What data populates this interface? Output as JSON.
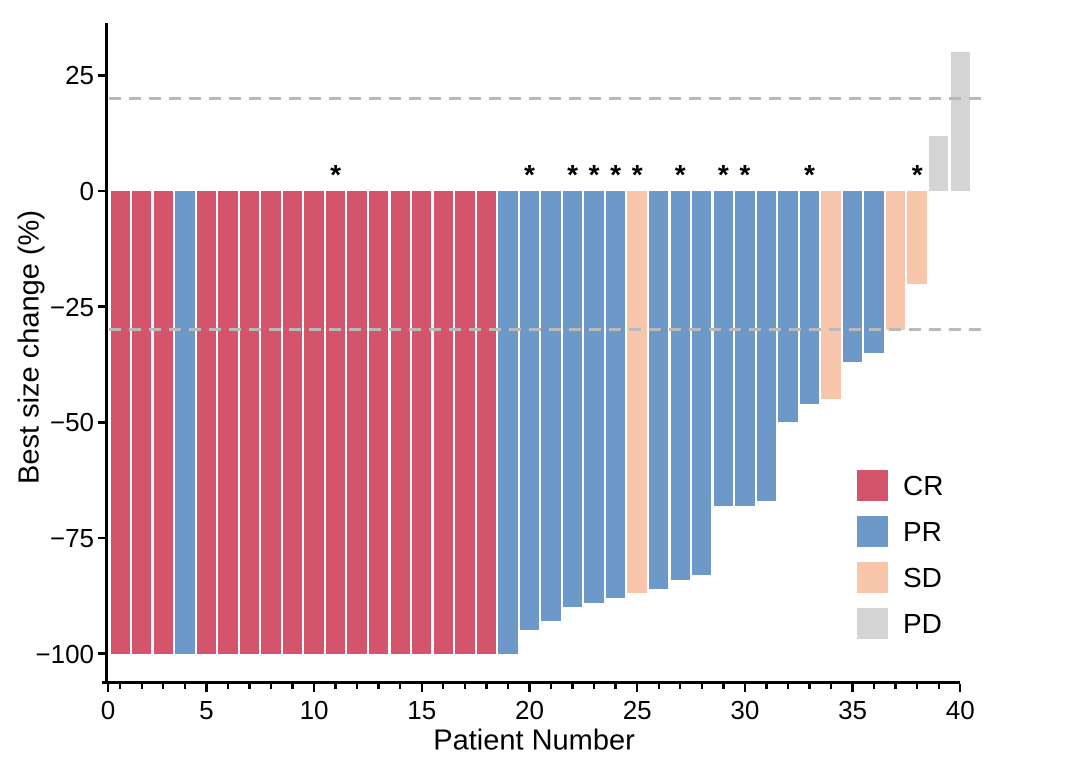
{
  "figure": {
    "kind": "oncology-waterfall-plot",
    "background": "#ffffff",
    "axis_color": "#000000",
    "text_color": "#000000"
  },
  "chart_data": {
    "type": "bar",
    "title": "",
    "xlabel": "Patient Number",
    "ylabel": "Best size change (%)",
    "x_ticks": [
      0,
      5,
      10,
      15,
      20,
      25,
      30,
      35,
      40
    ],
    "y_ticks": [
      25,
      0,
      -25,
      -50,
      -75,
      -100
    ],
    "y_tick_labels": [
      "25",
      "0",
      "−25",
      "−50",
      "−75",
      "−100"
    ],
    "ylim": [
      -106,
      37
    ],
    "grid": "off",
    "reference_lines": [
      20,
      -30
    ],
    "reference_line_style": "dashed",
    "reference_line_color": "#b9b9b9",
    "star_symbol": "*",
    "starred_patients": [
      11,
      20,
      22,
      23,
      24,
      25,
      27,
      29,
      30,
      33,
      38
    ],
    "response_colors": {
      "CR": "#d4546c",
      "PR": "#6d99c8",
      "SD": "#f7c6ab",
      "PD": "#d4d4d4"
    },
    "patients": [
      {
        "n": 1,
        "value": -100,
        "response": "CR"
      },
      {
        "n": 2,
        "value": -100,
        "response": "CR"
      },
      {
        "n": 3,
        "value": -100,
        "response": "CR"
      },
      {
        "n": 4,
        "value": -100,
        "response": "PR"
      },
      {
        "n": 5,
        "value": -100,
        "response": "CR"
      },
      {
        "n": 6,
        "value": -100,
        "response": "CR"
      },
      {
        "n": 7,
        "value": -100,
        "response": "CR"
      },
      {
        "n": 8,
        "value": -100,
        "response": "CR"
      },
      {
        "n": 9,
        "value": -100,
        "response": "CR"
      },
      {
        "n": 10,
        "value": -100,
        "response": "CR"
      },
      {
        "n": 11,
        "value": -100,
        "response": "CR"
      },
      {
        "n": 12,
        "value": -100,
        "response": "CR"
      },
      {
        "n": 13,
        "value": -100,
        "response": "CR"
      },
      {
        "n": 14,
        "value": -100,
        "response": "CR"
      },
      {
        "n": 15,
        "value": -100,
        "response": "CR"
      },
      {
        "n": 16,
        "value": -100,
        "response": "CR"
      },
      {
        "n": 17,
        "value": -100,
        "response": "CR"
      },
      {
        "n": 18,
        "value": -100,
        "response": "CR"
      },
      {
        "n": 19,
        "value": -100,
        "response": "PR"
      },
      {
        "n": 20,
        "value": -95,
        "response": "PR"
      },
      {
        "n": 21,
        "value": -93,
        "response": "PR"
      },
      {
        "n": 22,
        "value": -90,
        "response": "PR"
      },
      {
        "n": 23,
        "value": -89,
        "response": "PR"
      },
      {
        "n": 24,
        "value": -88,
        "response": "PR"
      },
      {
        "n": 25,
        "value": -87,
        "response": "SD"
      },
      {
        "n": 26,
        "value": -86,
        "response": "PR"
      },
      {
        "n": 27,
        "value": -84,
        "response": "PR"
      },
      {
        "n": 28,
        "value": -83,
        "response": "PR"
      },
      {
        "n": 29,
        "value": -68,
        "response": "PR"
      },
      {
        "n": 30,
        "value": -68,
        "response": "PR"
      },
      {
        "n": 31,
        "value": -67,
        "response": "PR"
      },
      {
        "n": 32,
        "value": -50,
        "response": "PR"
      },
      {
        "n": 33,
        "value": -46,
        "response": "PR"
      },
      {
        "n": 34,
        "value": -45,
        "response": "SD"
      },
      {
        "n": 35,
        "value": -37,
        "response": "PR"
      },
      {
        "n": 36,
        "value": -35,
        "response": "PR"
      },
      {
        "n": 37,
        "value": -30,
        "response": "SD"
      },
      {
        "n": 38,
        "value": -20,
        "response": "SD"
      },
      {
        "n": 39,
        "value": 12,
        "response": "PD"
      },
      {
        "n": 40,
        "value": 30,
        "response": "PD"
      }
    ],
    "legend": {
      "position": "right-middle",
      "entries": [
        {
          "label": "CR",
          "color": "#d4546c"
        },
        {
          "label": "PR",
          "color": "#6d99c8"
        },
        {
          "label": "SD",
          "color": "#f7c6ab"
        },
        {
          "label": "PD",
          "color": "#d4d4d4"
        }
      ]
    }
  }
}
